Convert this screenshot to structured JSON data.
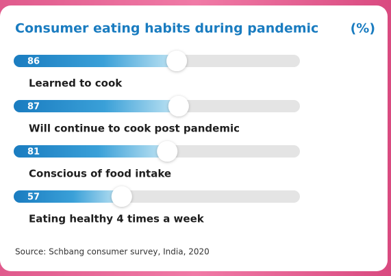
{
  "chart_data": {
    "type": "bar",
    "title": "Consumer eating habits during pandemic",
    "unit": "(%)",
    "categories": [
      "Learned to cook",
      "Will continue to cook post pandemic",
      "Conscious of food intake",
      "Eating healthy 4 times a week"
    ],
    "values": [
      86,
      87,
      81,
      57
    ],
    "xlim": [
      0,
      151
    ],
    "color": "#1a7cc0",
    "source": "Source: Schbang consumer survey, India, 2020"
  }
}
